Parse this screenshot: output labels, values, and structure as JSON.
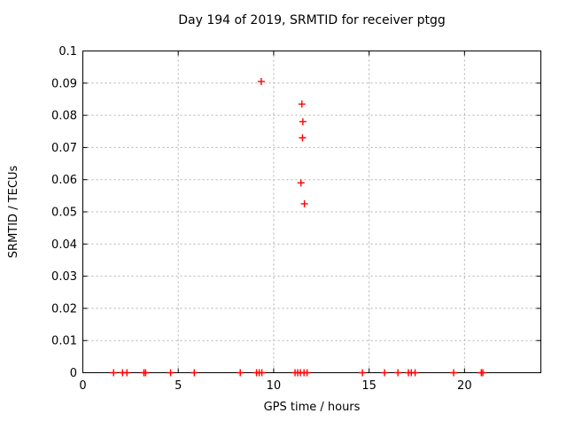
{
  "chart_data": {
    "type": "scatter",
    "title": "Day 194 of 2019, SRMTID for receiver ptgg",
    "xlabel": "GPS time / hours",
    "ylabel": "SRMTID / TECUs",
    "xlim": [
      0,
      24
    ],
    "ylim": [
      0,
      0.1
    ],
    "xticks": [
      0,
      5,
      10,
      15,
      20
    ],
    "xtick_labels": [
      "0",
      "5",
      "10",
      "15",
      "20"
    ],
    "yticks": [
      0,
      0.01,
      0.02,
      0.03,
      0.04,
      0.05,
      0.06,
      0.07,
      0.08,
      0.09,
      0.1
    ],
    "ytick_labels": [
      "0",
      "0.01",
      "0.02",
      "0.03",
      "0.04",
      "0.05",
      "0.06",
      "0.07",
      "0.08",
      "0.09",
      "0.1"
    ],
    "grid": true,
    "legend": "none",
    "marker": "plus",
    "marker_color": "#ff0000",
    "axis_color": "#000000",
    "grid_color": "#b0b0b0",
    "series": [
      {
        "name": "SRMTID",
        "points": [
          [
            1.61,
            0
          ],
          [
            2.08,
            0
          ],
          [
            2.31,
            0
          ],
          [
            3.2,
            0
          ],
          [
            3.29,
            0
          ],
          [
            4.6,
            0
          ],
          [
            5.84,
            0
          ],
          [
            8.25,
            0
          ],
          [
            9.1,
            0
          ],
          [
            9.24,
            0
          ],
          [
            9.35,
            0.0905
          ],
          [
            9.38,
            0
          ],
          [
            11.12,
            0
          ],
          [
            11.26,
            0
          ],
          [
            11.4,
            0
          ],
          [
            11.43,
            0.059
          ],
          [
            11.48,
            0.0835
          ],
          [
            11.51,
            0.073
          ],
          [
            11.53,
            0.078
          ],
          [
            11.59,
            0
          ],
          [
            11.61,
            0.0525
          ],
          [
            11.75,
            0
          ],
          [
            14.65,
            0
          ],
          [
            15.81,
            0
          ],
          [
            16.51,
            0
          ],
          [
            17.06,
            0
          ],
          [
            17.21,
            0
          ],
          [
            17.41,
            0
          ],
          [
            19.43,
            0
          ],
          [
            20.88,
            0
          ],
          [
            20.96,
            0
          ]
        ]
      }
    ]
  }
}
